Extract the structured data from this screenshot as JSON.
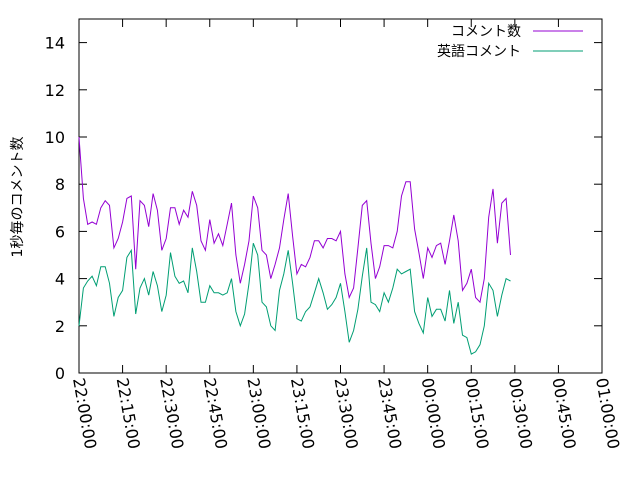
{
  "chart_data": {
    "type": "line",
    "title": "",
    "xlabel": "",
    "ylabel": "1秒毎のコメント数",
    "x_ticks": [
      "22:00:00",
      "22:15:00",
      "22:30:00",
      "22:45:00",
      "23:00:00",
      "23:15:00",
      "23:30:00",
      "23:45:00",
      "00:00:00",
      "00:15:00",
      "00:30:00",
      "00:45:00",
      "01:00:00"
    ],
    "x_start": "22:00:00",
    "x_end": "01:00:00",
    "x_step_minutes": 1.5,
    "ylim": [
      0,
      15
    ],
    "y_ticks": [
      0,
      2,
      4,
      6,
      8,
      10,
      12,
      14
    ],
    "legend_position": "top-right",
    "grid": false,
    "series": [
      {
        "name": "コメント数",
        "color": "#9400d3",
        "values": [
          10.0,
          7.4,
          6.3,
          6.4,
          6.3,
          7.0,
          7.3,
          7.1,
          5.3,
          5.7,
          6.4,
          7.4,
          7.5,
          4.4,
          7.3,
          7.1,
          6.2,
          7.6,
          6.9,
          5.2,
          5.7,
          7.0,
          7.0,
          6.3,
          6.9,
          6.6,
          7.7,
          7.1,
          5.6,
          5.2,
          6.5,
          5.5,
          5.9,
          5.4,
          6.3,
          7.2,
          5.0,
          3.8,
          4.6,
          5.6,
          7.5,
          7.0,
          5.2,
          5.0,
          4.0,
          4.6,
          5.3,
          6.5,
          7.6,
          5.8,
          4.2,
          4.6,
          4.5,
          4.9,
          5.6,
          5.6,
          5.3,
          5.7,
          5.7,
          5.6,
          6.0,
          4.2,
          3.2,
          3.6,
          5.3,
          7.1,
          7.3,
          5.5,
          4.0,
          4.5,
          5.4,
          5.4,
          5.3,
          6.0,
          7.5,
          8.1,
          8.1,
          6.1,
          5.1,
          4.0,
          5.3,
          4.9,
          5.4,
          5.5,
          4.6,
          5.6,
          6.7,
          5.6,
          3.5,
          3.8,
          4.4,
          3.2,
          3.0,
          4.0,
          6.6,
          7.8,
          5.5,
          7.2,
          7.4,
          5.0
        ]
      },
      {
        "name": "英語コメント",
        "color": "#009e73",
        "values": [
          2.0,
          3.6,
          3.9,
          4.1,
          3.7,
          4.5,
          4.5,
          3.8,
          2.4,
          3.2,
          3.5,
          4.9,
          5.2,
          2.5,
          3.6,
          4.0,
          3.3,
          4.3,
          3.7,
          2.6,
          3.3,
          5.1,
          4.1,
          3.8,
          3.9,
          3.4,
          5.3,
          4.3,
          3.0,
          3.0,
          3.7,
          3.4,
          3.4,
          3.3,
          3.4,
          4.0,
          2.6,
          2.0,
          2.5,
          3.8,
          5.5,
          5.0,
          3.0,
          2.8,
          2.0,
          1.8,
          3.5,
          4.2,
          5.2,
          3.8,
          2.3,
          2.2,
          2.6,
          2.8,
          3.4,
          4.0,
          3.4,
          2.7,
          2.9,
          3.2,
          3.8,
          2.6,
          1.3,
          1.8,
          2.7,
          4.1,
          5.3,
          3.0,
          2.9,
          2.6,
          3.4,
          3.0,
          3.6,
          4.4,
          4.2,
          4.3,
          4.4,
          2.6,
          2.1,
          1.7,
          3.2,
          2.4,
          2.7,
          2.7,
          2.2,
          3.5,
          2.1,
          3.0,
          1.6,
          1.5,
          0.8,
          0.9,
          1.2,
          2.0,
          3.8,
          3.5,
          2.4,
          3.3,
          4.0,
          3.9
        ]
      }
    ]
  }
}
